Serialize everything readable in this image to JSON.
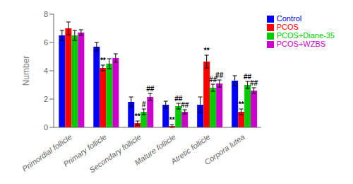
{
  "chart_data": {
    "type": "bar",
    "categories": [
      "Primordial follicle",
      "Primary follicle",
      "Secondary follicle",
      "Mature follicle",
      "Atretic follicle",
      "Corpora lutea"
    ],
    "series": [
      {
        "name": "Control",
        "color": "#0000FF",
        "values": [
          6.5,
          5.7,
          1.8,
          1.6,
          1.6,
          3.3
        ],
        "errors": [
          0.35,
          0.3,
          0.35,
          0.25,
          0.55,
          0.35
        ]
      },
      {
        "name": "PCOS",
        "color": "#FF0000",
        "values": [
          7.0,
          4.2,
          0.3,
          0.1,
          4.65,
          1.1
        ],
        "errors": [
          0.45,
          0.2,
          0.15,
          0.1,
          0.45,
          0.2
        ]
      },
      {
        "name": "PCOS+Diane-35",
        "color": "#00CC00",
        "values": [
          6.5,
          4.5,
          1.1,
          1.5,
          2.8,
          3.0
        ],
        "errors": [
          0.35,
          0.35,
          0.2,
          0.2,
          0.25,
          0.25
        ]
      },
      {
        "name": "PCOS+WZBS",
        "color": "#CC00CC",
        "values": [
          6.7,
          4.9,
          2.15,
          1.1,
          3.1,
          2.6
        ],
        "errors": [
          0.2,
          0.3,
          0.25,
          0.15,
          0.25,
          0.2
        ]
      }
    ],
    "annotations": [
      {
        "category": "Primary follicle",
        "series": "PCOS",
        "text": "**"
      },
      {
        "category": "Secondary follicle",
        "series": "PCOS",
        "text": "**"
      },
      {
        "category": "Secondary follicle",
        "series": "PCOS+Diane-35",
        "text": "#"
      },
      {
        "category": "Secondary follicle",
        "series": "PCOS+WZBS",
        "text": "##"
      },
      {
        "category": "Mature follicle",
        "series": "PCOS",
        "text": "**"
      },
      {
        "category": "Mature follicle",
        "series": "PCOS+Diane-35",
        "text": "##"
      },
      {
        "category": "Mature follicle",
        "series": "PCOS+WZBS",
        "text": "##"
      },
      {
        "category": "Atretic follicle",
        "series": "PCOS",
        "text": "**"
      },
      {
        "category": "Atretic follicle",
        "series": "PCOS+Diane-35",
        "text": "##"
      },
      {
        "category": "Atretic follicle",
        "series": "PCOS+WZBS",
        "text": "##"
      },
      {
        "category": "Corpora lutea",
        "series": "PCOS",
        "text": "**"
      },
      {
        "category": "Corpora lutea",
        "series": "PCOS+Diane-35",
        "text": "##"
      },
      {
        "category": "Corpora lutea",
        "series": "PCOS+WZBS",
        "text": "##"
      }
    ],
    "ylabel": "Number",
    "ylim": [
      0,
      8
    ],
    "yticks": [
      0,
      2,
      4,
      6,
      8
    ],
    "legend": "upper right",
    "grid": false
  }
}
